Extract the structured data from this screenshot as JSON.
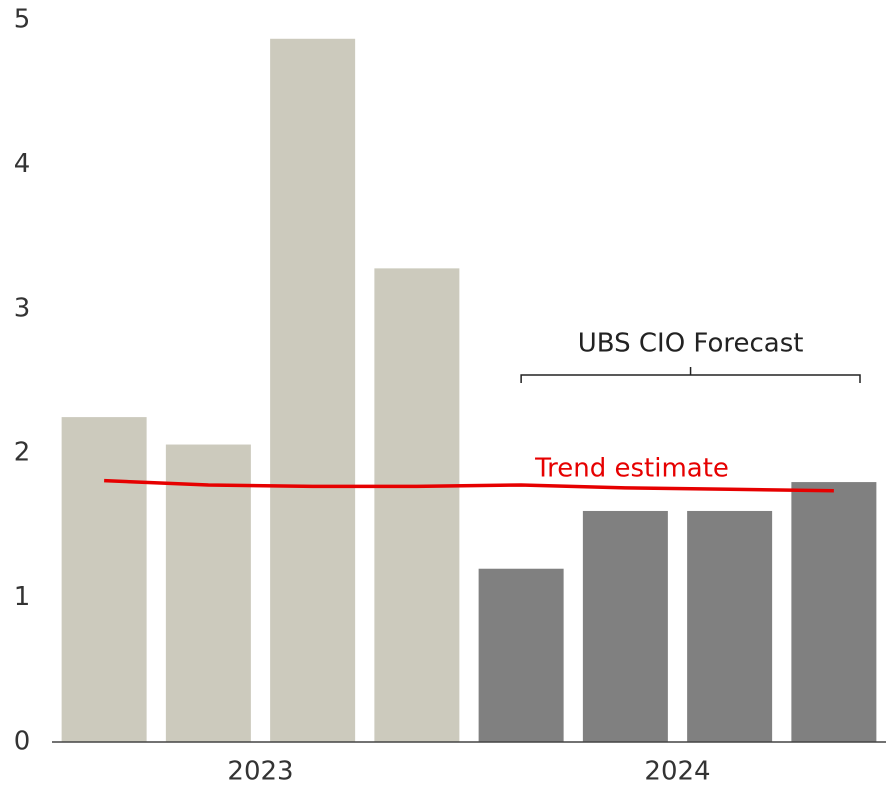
{
  "chart_data": {
    "type": "bar",
    "categories": [
      null,
      null,
      null,
      null,
      null,
      null,
      null,
      null
    ],
    "category_groups": [
      "2023",
      "2024"
    ],
    "values": [
      2.25,
      2.06,
      4.87,
      3.28,
      1.2,
      1.6,
      1.6,
      1.8
    ],
    "colors": [
      "#cccabd",
      "#cccabd",
      "#cccabd",
      "#cccabd",
      "#808080",
      "#808080",
      "#808080",
      "#808080"
    ],
    "series": [
      {
        "name": "Trend estimate",
        "color": "#e60000",
        "values": [
          1.81,
          1.78,
          1.77,
          1.77,
          1.78,
          1.76,
          1.75,
          1.74
        ]
      }
    ],
    "annotation": "UBS CIO Forecast",
    "ylim": [
      0,
      5
    ],
    "yticks": [
      0,
      1,
      2,
      3,
      4,
      5
    ],
    "grid": false
  }
}
